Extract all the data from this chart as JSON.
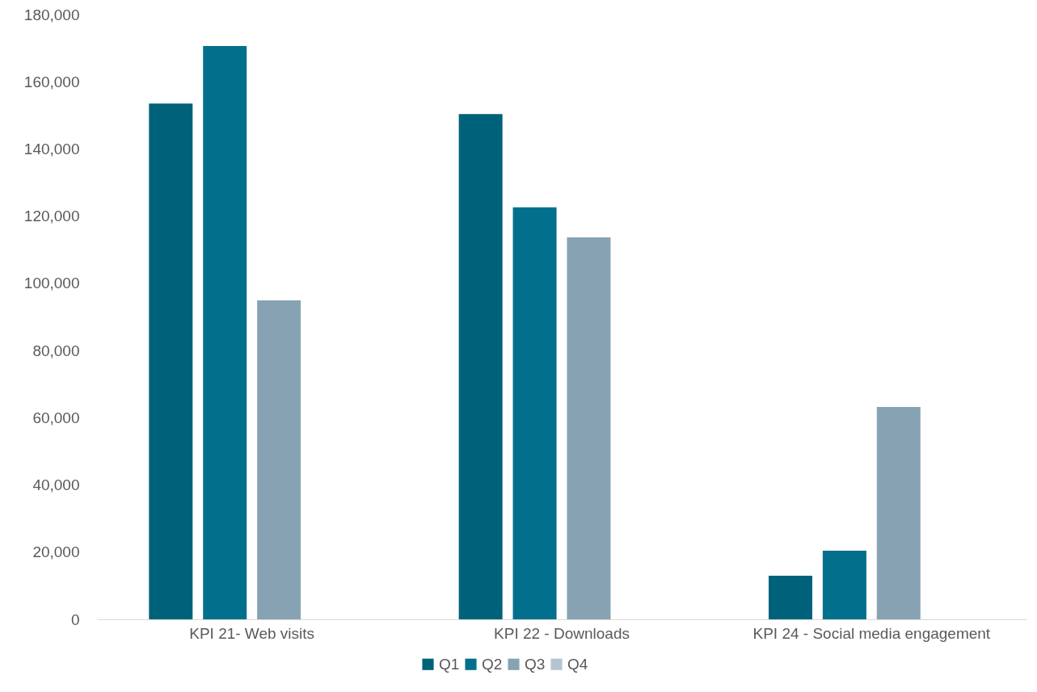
{
  "chart_data": {
    "type": "bar",
    "categories": [
      "KPI 21- Web visits",
      "KPI 22 - Downloads",
      "KPI 24 - Social media engagement"
    ],
    "series": [
      {
        "name": "Q1",
        "color": "#00627a",
        "values": [
          153500,
          150400,
          13000
        ]
      },
      {
        "name": "Q2",
        "color": "#02708c",
        "values": [
          170600,
          122600,
          20400
        ]
      },
      {
        "name": "Q3",
        "color": "#87a3b3",
        "values": [
          94900,
          113700,
          63200
        ]
      },
      {
        "name": "Q4",
        "color": "#b5c5d0",
        "values": [
          null,
          null,
          null
        ]
      }
    ],
    "ylim": [
      0,
      180000
    ],
    "yticks": [
      0,
      {
        "value": 20000,
        "label": "20,000"
      },
      {
        "value": 40000,
        "label": "40,000"
      },
      {
        "value": 60000,
        "label": "60,000"
      },
      {
        "value": 80000,
        "label": "80,000"
      },
      {
        "value": 100000,
        "label": "100,000"
      },
      {
        "value": 120000,
        "label": "120,000"
      },
      {
        "value": 140000,
        "label": "140,000"
      },
      {
        "value": 160000,
        "label": "160,000"
      },
      {
        "value": 180000,
        "label": "180,000"
      }
    ],
    "grid": false,
    "legend": "bottom"
  }
}
